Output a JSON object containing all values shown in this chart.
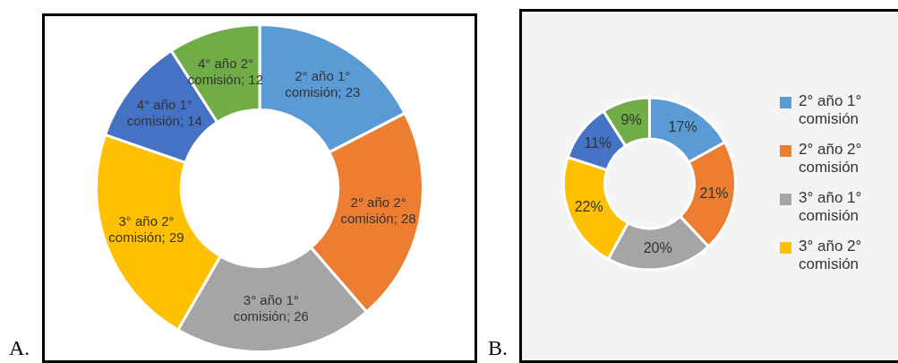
{
  "chart_data": [
    {
      "type": "donut",
      "categories": [
        "2° año 1° comisión",
        "2° año 2° comisión",
        "3° año 1° comisión",
        "3° año 2° comisión",
        "4° año 1° comisión",
        "4° año 2° comisión"
      ],
      "values": [
        23,
        28,
        26,
        29,
        14,
        12
      ],
      "colors": [
        "#5b9bd5",
        "#ed7d31",
        "#a5a5a5",
        "#ffc000",
        "#4472c4",
        "#70ad47"
      ],
      "value_labels": [
        "; 23",
        "; 28",
        "; 26",
        "; 29",
        "; 14",
        "; 12"
      ],
      "legend": false,
      "annotations": [
        "A."
      ]
    },
    {
      "type": "donut",
      "categories": [
        "2° año 1° comisión",
        "2° año 2° comisión",
        "3° año 1° comisión",
        "3° año 2° comisión",
        null,
        null
      ],
      "values": [
        17,
        21,
        20,
        22,
        11,
        9
      ],
      "colors": [
        "#5b9bd5",
        "#ed7d31",
        "#a5a5a5",
        "#ffc000",
        "#4472c4",
        "#70ad47"
      ],
      "value_labels": [
        "17%",
        "21%",
        "20%",
        "22%",
        "11%",
        "9%"
      ],
      "legend": "right",
      "annotations": [
        "B."
      ]
    }
  ]
}
